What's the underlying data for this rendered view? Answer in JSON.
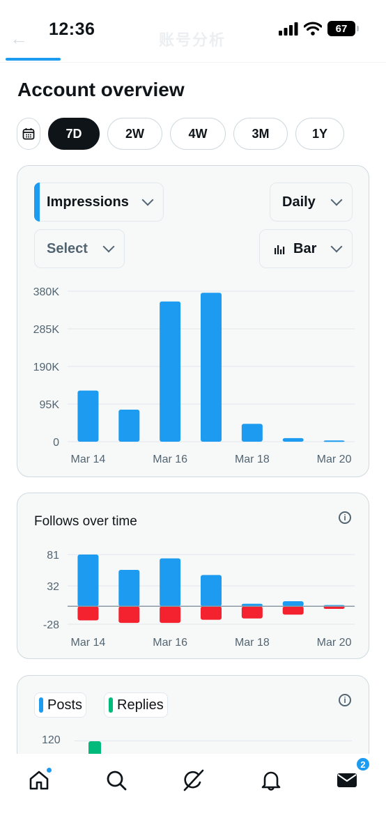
{
  "status_bar": {
    "time": "12:36",
    "battery": "67"
  },
  "header": {
    "back_glyph": "←",
    "ghost_title": "账号分析"
  },
  "page_title": "Account overview",
  "ranges": [
    {
      "label": "7D",
      "active": true
    },
    {
      "label": "2W",
      "active": false
    },
    {
      "label": "4W",
      "active": false
    },
    {
      "label": "3M",
      "active": false
    },
    {
      "label": "1Y",
      "active": false
    }
  ],
  "impressions_card": {
    "metric": "Impressions",
    "interval": "Daily",
    "compare": "Select",
    "chart_kind": "Bar"
  },
  "follows_card": {
    "title": "Follows over time"
  },
  "posts_card": {
    "legend": [
      "Posts",
      "Replies"
    ],
    "first_tick": "120"
  },
  "nav": {
    "messages_badge": "2"
  },
  "colors": {
    "accent": "#1d9bf0",
    "negative": "#f4212e",
    "replies": "#00ba7c"
  },
  "chart_data": [
    {
      "type": "bar",
      "categories": [
        "Mar 14",
        "Mar 15",
        "Mar 16",
        "Mar 17",
        "Mar 18",
        "Mar 19",
        "Mar 20"
      ],
      "x_tick_labels": [
        "Mar 14",
        "Mar 16",
        "Mar 18",
        "Mar 20"
      ],
      "y_tick_labels": [
        "380K",
        "285K",
        "190K",
        "95K",
        "0"
      ],
      "values": [
        129000,
        81000,
        354000,
        376000,
        45000,
        9000,
        3000
      ],
      "ylim": [
        0,
        380000
      ],
      "grid": true
    },
    {
      "type": "bar",
      "categories": [
        "Mar 14",
        "Mar 15",
        "Mar 16",
        "Mar 17",
        "Mar 18",
        "Mar 19",
        "Mar 20"
      ],
      "x_tick_labels": [
        "Mar 14",
        "Mar 16",
        "Mar 18",
        "Mar 20"
      ],
      "y_tick_labels": [
        "81",
        "32",
        "-28"
      ],
      "series": [
        {
          "values": [
            81,
            57,
            75,
            49,
            4,
            8,
            2
          ]
        },
        {
          "values": [
            -22,
            -26,
            -26,
            -21,
            -19,
            -13,
            -4
          ]
        }
      ],
      "ylim": [
        -28,
        81
      ],
      "grid": true
    }
  ]
}
